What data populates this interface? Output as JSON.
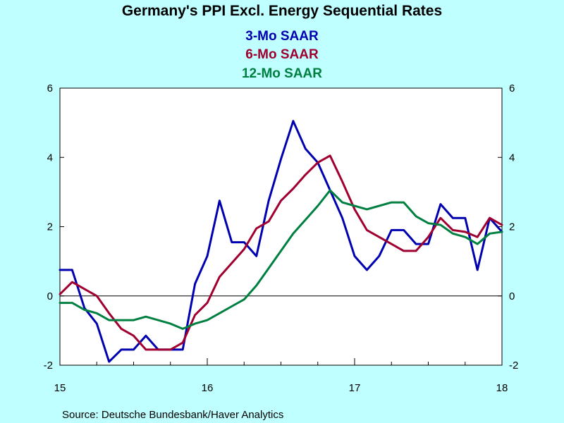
{
  "chart_data": {
    "type": "line",
    "title": "Germany's PPI Excl. Energy Sequential Rates",
    "source": "Source:  Deutsche Bundesbank/Haver Analytics",
    "xlim": [
      2015.0,
      2018.0
    ],
    "ylim": [
      -2,
      6
    ],
    "y_ticks": [
      "-2",
      "0",
      "2",
      "4",
      "6"
    ],
    "x_ticks": [
      "15",
      "16",
      "17",
      "18"
    ],
    "grid": false,
    "legend_position": "top-center",
    "colors": {
      "background": "#c0ffff",
      "plot_background": "#ffffff",
      "3mo": "#0000b0",
      "6mo": "#a00030",
      "12mo": "#008040"
    },
    "series": [
      {
        "name": "3-Mo SAAR",
        "color": "#0000b0",
        "x": [
          2015.0,
          2015.0833,
          2015.1667,
          2015.25,
          2015.3333,
          2015.4167,
          2015.5,
          2015.5833,
          2015.6667,
          2015.75,
          2015.8333,
          2015.9167,
          2016.0,
          2016.0833,
          2016.1667,
          2016.25,
          2016.3333,
          2016.4167,
          2016.5,
          2016.5833,
          2016.6667,
          2016.75,
          2016.8333,
          2016.9167,
          2017.0,
          2017.0833,
          2017.1667,
          2017.25,
          2017.3333,
          2017.4167,
          2017.5,
          2017.5833,
          2017.6667,
          2017.75,
          2017.8333,
          2017.9167,
          2018.0
        ],
        "values": [
          0.75,
          0.75,
          -0.35,
          -0.8,
          -1.9,
          -1.55,
          -1.55,
          -1.15,
          -1.55,
          -1.55,
          -1.55,
          0.35,
          1.15,
          2.75,
          1.55,
          1.55,
          1.15,
          2.75,
          3.95,
          5.05,
          4.25,
          3.85,
          3.05,
          2.25,
          1.15,
          0.75,
          1.15,
          1.9,
          1.9,
          1.5,
          1.5,
          2.65,
          2.25,
          2.25,
          0.75,
          2.25,
          1.85
        ]
      },
      {
        "name": "6-Mo SAAR",
        "color": "#a00030",
        "x": [
          2015.0,
          2015.0833,
          2015.1667,
          2015.25,
          2015.3333,
          2015.4167,
          2015.5,
          2015.5833,
          2015.6667,
          2015.75,
          2015.8333,
          2015.9167,
          2016.0,
          2016.0833,
          2016.1667,
          2016.25,
          2016.3333,
          2016.4167,
          2016.5,
          2016.5833,
          2016.6667,
          2016.75,
          2016.8333,
          2016.9167,
          2017.0,
          2017.0833,
          2017.1667,
          2017.25,
          2017.3333,
          2017.4167,
          2017.5,
          2017.5833,
          2017.6667,
          2017.75,
          2017.8333,
          2017.9167,
          2018.0
        ],
        "values": [
          0.05,
          0.4,
          0.2,
          0.0,
          -0.5,
          -0.95,
          -1.15,
          -1.55,
          -1.55,
          -1.55,
          -1.35,
          -0.55,
          -0.2,
          0.55,
          0.95,
          1.35,
          1.95,
          2.15,
          2.75,
          3.1,
          3.5,
          3.85,
          4.05,
          3.3,
          2.5,
          1.9,
          1.7,
          1.5,
          1.3,
          1.3,
          1.7,
          2.25,
          1.9,
          1.85,
          1.7,
          2.25,
          2.05
        ]
      },
      {
        "name": "12-Mo SAAR",
        "color": "#008040",
        "x": [
          2015.0,
          2015.0833,
          2015.1667,
          2015.25,
          2015.3333,
          2015.4167,
          2015.5,
          2015.5833,
          2015.6667,
          2015.75,
          2015.8333,
          2015.9167,
          2016.0,
          2016.0833,
          2016.1667,
          2016.25,
          2016.3333,
          2016.4167,
          2016.5,
          2016.5833,
          2016.6667,
          2016.75,
          2016.8333,
          2016.9167,
          2017.0,
          2017.0833,
          2017.1667,
          2017.25,
          2017.3333,
          2017.4167,
          2017.5,
          2017.5833,
          2017.6667,
          2017.75,
          2017.8333,
          2017.9167,
          2018.0
        ],
        "values": [
          -0.2,
          -0.2,
          -0.4,
          -0.5,
          -0.7,
          -0.7,
          -0.7,
          -0.6,
          -0.7,
          -0.8,
          -0.95,
          -0.8,
          -0.7,
          -0.5,
          -0.3,
          -0.1,
          0.3,
          0.8,
          1.3,
          1.8,
          2.2,
          2.6,
          3.05,
          2.7,
          2.6,
          2.5,
          2.6,
          2.7,
          2.7,
          2.3,
          2.1,
          2.05,
          1.8,
          1.7,
          1.5,
          1.8,
          1.85
        ]
      }
    ]
  }
}
